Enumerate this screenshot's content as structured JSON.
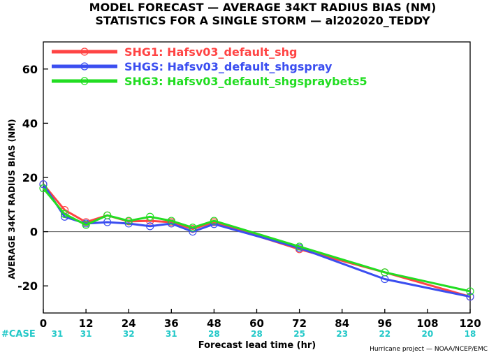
{
  "chart_data": {
    "type": "line",
    "title_line1": "MODEL FORECAST — AVERAGE 34KT RADIUS BIAS (NM)",
    "title_line2": "STATISTICS FOR A SINGLE STORM — al202020_TEDDY",
    "ylabel": "AVERAGE 34KT RADIUS BIAS (NM)",
    "xlabel": "Forecast lead time (hr)",
    "credit": "Hurricane project — NOAA/NCEP/EMC",
    "case_label": "#CASE",
    "xlim": [
      0,
      120
    ],
    "ylim": [
      -30,
      70
    ],
    "x_ticks": [
      0,
      12,
      24,
      36,
      48,
      60,
      72,
      84,
      96,
      108,
      120
    ],
    "y_ticks": [
      -20,
      0,
      20,
      40,
      60
    ],
    "case_counts": [
      "31",
      "31",
      "32",
      "31",
      "28",
      "28",
      "25",
      "23",
      "22",
      "20",
      "18"
    ],
    "grid": false,
    "legend_position": "top-left",
    "colors": {
      "axis": "#000000",
      "zero_line": "#555555",
      "case": "#22c8c8"
    },
    "series": [
      {
        "name": "SHG1: Hafsv03_default_shg",
        "color": "#ff4444",
        "x": [
          0,
          6,
          12,
          18,
          24,
          30,
          36,
          42,
          48,
          72,
          96,
          120
        ],
        "y": [
          17.5,
          8,
          3.5,
          6,
          3.8,
          4,
          3.5,
          1,
          3.5,
          -6.5,
          -15,
          -24
        ]
      },
      {
        "name": "SHGS: Hafsv03_default_shgspray",
        "color": "#3b4ef0",
        "x": [
          0,
          6,
          12,
          18,
          24,
          30,
          36,
          42,
          48,
          72,
          96,
          120
        ],
        "y": [
          17.5,
          5.5,
          3,
          3.5,
          3,
          2,
          3,
          0,
          2.8,
          -6,
          -17.5,
          -24
        ]
      },
      {
        "name": "SHG3: Hafsv03_default_shgspraybets5",
        "color": "#22dd22",
        "x": [
          0,
          6,
          12,
          18,
          24,
          30,
          36,
          42,
          48,
          72,
          96,
          120
        ],
        "y": [
          16,
          6.5,
          2.5,
          6,
          4,
          5.5,
          4,
          1.5,
          4,
          -5.5,
          -15,
          -22
        ]
      }
    ]
  }
}
